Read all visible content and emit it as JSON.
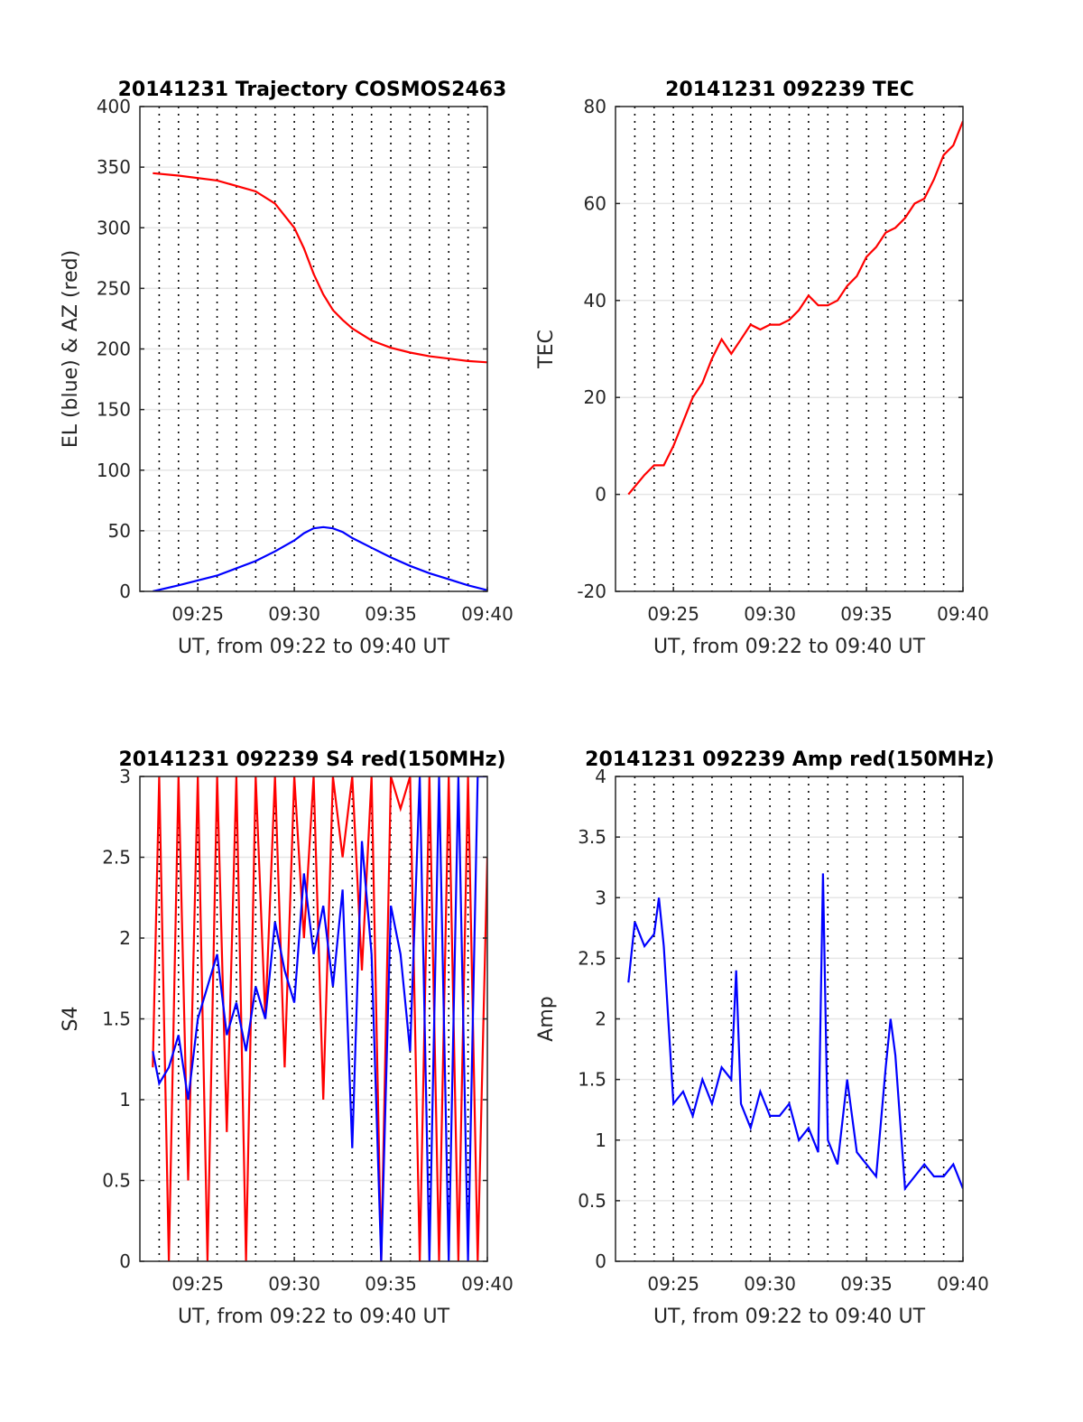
{
  "chart_data": [
    {
      "id": "p1",
      "type": "line",
      "title": "20141231 Trajectory COSMOS2463",
      "xlabel": "UT, from 09:22 to 09:40 UT",
      "ylabel": "EL (blue) & AZ (red)",
      "xlim": [
        "09:22",
        "09:40"
      ],
      "ylim": [
        0,
        400
      ],
      "xticks": [
        "09:25",
        "09:30",
        "09:35",
        "09:40"
      ],
      "yticks": [
        0,
        50,
        100,
        150,
        200,
        250,
        300,
        350,
        400
      ],
      "ytick_labels": [
        "0",
        "50",
        "100",
        "150",
        "200",
        "250",
        "300",
        "350",
        "400"
      ],
      "grid": "vertical dotted lines every minute, horizontal light-gray lines at each y tick",
      "colors": {
        "EL": "#0000ff",
        "AZ": "#ff0000"
      },
      "series": [
        {
          "key": "AZ",
          "color": "#ff0000",
          "x": [
            "09:22:40",
            "09:24:00",
            "09:26:00",
            "09:28:00",
            "09:29:00",
            "09:30:00",
            "09:30:30",
            "09:31:00",
            "09:31:30",
            "09:32:00",
            "09:32:30",
            "09:33:00",
            "09:33:30",
            "09:34:00",
            "09:35:00",
            "09:36:00",
            "09:37:00",
            "09:38:00",
            "09:39:00",
            "09:40:00"
          ],
          "y": [
            345,
            343,
            339,
            330,
            320,
            300,
            283,
            262,
            245,
            232,
            224,
            217,
            212,
            207,
            201,
            197,
            194,
            192,
            190,
            189
          ]
        },
        {
          "key": "EL",
          "color": "#0000ff",
          "x": [
            "09:22:40",
            "09:24:00",
            "09:26:00",
            "09:28:00",
            "09:29:00",
            "09:30:00",
            "09:30:30",
            "09:31:00",
            "09:31:30",
            "09:32:00",
            "09:32:30",
            "09:33:00",
            "09:34:00",
            "09:35:00",
            "09:36:00",
            "09:37:00",
            "09:38:00",
            "09:39:00",
            "09:40:00"
          ],
          "y": [
            0,
            5,
            13,
            25,
            33,
            42,
            48,
            52,
            53,
            52,
            49,
            44,
            36,
            28,
            21,
            15,
            10,
            5,
            1
          ]
        }
      ]
    },
    {
      "id": "p2",
      "type": "line",
      "title": "20141231 092239 TEC",
      "xlabel": "UT, from 09:22 to 09:40 UT",
      "ylabel": "TEC",
      "xlim": [
        "09:22",
        "09:40"
      ],
      "ylim": [
        -20,
        80
      ],
      "xticks": [
        "09:25",
        "09:30",
        "09:35",
        "09:40"
      ],
      "yticks": [
        -20,
        0,
        20,
        40,
        60,
        80
      ],
      "ytick_labels": [
        "-20",
        "0",
        "20",
        "40",
        "60",
        "80"
      ],
      "grid": "vertical dotted lines every minute, horizontal light-gray lines at each y tick",
      "colors": {
        "TEC": "#ff0000"
      },
      "series": [
        {
          "key": "TEC",
          "color": "#ff0000",
          "x": [
            "09:22:40",
            "09:23:30",
            "09:24:00",
            "09:24:30",
            "09:25:00",
            "09:25:30",
            "09:26:00",
            "09:26:30",
            "09:27:00",
            "09:27:30",
            "09:28:00",
            "09:28:30",
            "09:29:00",
            "09:29:30",
            "09:30:00",
            "09:30:30",
            "09:31:00",
            "09:31:30",
            "09:32:00",
            "09:32:30",
            "09:33:00",
            "09:33:30",
            "09:34:00",
            "09:34:30",
            "09:35:00",
            "09:35:30",
            "09:36:00",
            "09:36:30",
            "09:37:00",
            "09:37:30",
            "09:38:00",
            "09:38:30",
            "09:39:00",
            "09:39:30",
            "09:40:00"
          ],
          "y": [
            0,
            4,
            6,
            6,
            10,
            15,
            20,
            23,
            28,
            32,
            29,
            32,
            35,
            34,
            35,
            35,
            36,
            38,
            41,
            39,
            39,
            40,
            43,
            45,
            49,
            51,
            54,
            55,
            57,
            60,
            61,
            65,
            70,
            72,
            77
          ]
        }
      ]
    },
    {
      "id": "p3",
      "type": "line",
      "title": "20141231 092239 S4 red(150MHz)",
      "xlabel": "UT, from 09:22 to 09:40 UT",
      "ylabel": "S4",
      "xlim": [
        "09:22",
        "09:40"
      ],
      "ylim": [
        0,
        3
      ],
      "xticks": [
        "09:25",
        "09:30",
        "09:35",
        "09:40"
      ],
      "yticks": [
        0,
        0.5,
        1,
        1.5,
        2,
        2.5,
        3
      ],
      "ytick_labels": [
        "0",
        "0.5",
        "1",
        "1.5",
        "2",
        "2.5",
        "3"
      ],
      "grid": "vertical dotted lines every minute, horizontal light-gray lines at each y tick",
      "colors": {
        "S4_red": "#ff0000",
        "S4_blue": "#0000ff"
      },
      "series": [
        {
          "key": "S4_red",
          "color": "#ff0000",
          "x": [
            "09:22:40",
            "09:23:00",
            "09:23:30",
            "09:24:00",
            "09:24:30",
            "09:25:00",
            "09:25:30",
            "09:26:00",
            "09:26:30",
            "09:27:00",
            "09:27:30",
            "09:28:00",
            "09:28:30",
            "09:29:00",
            "09:29:30",
            "09:30:00",
            "09:30:30",
            "09:31:00",
            "09:31:30",
            "09:32:00",
            "09:32:30",
            "09:33:00",
            "09:33:30",
            "09:34:00",
            "09:34:30",
            "09:35:00",
            "09:35:30",
            "09:36:00",
            "09:36:30",
            "09:37:00",
            "09:37:30",
            "09:38:00",
            "09:38:30",
            "09:39:00",
            "09:39:30",
            "09:40:00"
          ],
          "y": [
            1.2,
            3.0,
            0.0,
            3.0,
            0.5,
            3.0,
            0.0,
            3.0,
            0.8,
            3.0,
            0.0,
            3.0,
            1.5,
            3.0,
            1.2,
            3.0,
            2.0,
            3.0,
            1.0,
            3.0,
            2.5,
            3.0,
            1.8,
            3.0,
            0.0,
            3.0,
            2.8,
            3.0,
            0.0,
            3.0,
            0.0,
            3.0,
            0.0,
            3.0,
            0.0,
            2.5
          ]
        },
        {
          "key": "S4_blue",
          "color": "#0000ff",
          "x": [
            "09:22:40",
            "09:23:00",
            "09:23:30",
            "09:24:00",
            "09:24:30",
            "09:25:00",
            "09:25:30",
            "09:26:00",
            "09:26:30",
            "09:27:00",
            "09:27:30",
            "09:28:00",
            "09:28:30",
            "09:29:00",
            "09:29:30",
            "09:30:00",
            "09:30:30",
            "09:31:00",
            "09:31:30",
            "09:32:00",
            "09:32:30",
            "09:33:00",
            "09:33:30",
            "09:34:00",
            "09:34:30",
            "09:35:00",
            "09:35:30",
            "09:36:00",
            "09:36:30",
            "09:37:00",
            "09:37:30",
            "09:38:00",
            "09:38:30",
            "09:39:00",
            "09:39:30",
            "09:40:00"
          ],
          "y": [
            1.3,
            1.1,
            1.2,
            1.4,
            1.0,
            1.5,
            1.7,
            1.9,
            1.4,
            1.6,
            1.3,
            1.7,
            1.5,
            2.1,
            1.8,
            1.6,
            2.4,
            1.9,
            2.2,
            1.7,
            2.3,
            0.7,
            2.6,
            1.9,
            0.0,
            2.2,
            1.9,
            1.3,
            3.0,
            0.0,
            3.0,
            0.0,
            3.0,
            0.0,
            3.0,
            3.0
          ]
        }
      ]
    },
    {
      "id": "p4",
      "type": "line",
      "title": "20141231 092239 Amp red(150MHz)",
      "xlabel": "UT, from 09:22 to 09:40 UT",
      "ylabel": "Amp",
      "xlim": [
        "09:22",
        "09:40"
      ],
      "ylim": [
        0,
        4
      ],
      "xticks": [
        "09:25",
        "09:30",
        "09:35",
        "09:40"
      ],
      "yticks": [
        0,
        0.5,
        1,
        1.5,
        2,
        2.5,
        3,
        3.5,
        4
      ],
      "ytick_labels": [
        "0",
        "0.5",
        "1",
        "1.5",
        "2",
        "2.5",
        "3",
        "3.5",
        "4"
      ],
      "grid": "vertical dotted lines every minute, horizontal light-gray lines at each y tick",
      "colors": {
        "Amp": "#0000ff"
      },
      "series": [
        {
          "key": "Amp",
          "color": "#0000ff",
          "x": [
            "09:22:40",
            "09:23:00",
            "09:23:30",
            "09:24:00",
            "09:24:15",
            "09:24:30",
            "09:25:00",
            "09:25:30",
            "09:26:00",
            "09:26:30",
            "09:27:00",
            "09:27:30",
            "09:28:00",
            "09:28:15",
            "09:28:30",
            "09:29:00",
            "09:29:30",
            "09:30:00",
            "09:30:30",
            "09:31:00",
            "09:31:30",
            "09:32:00",
            "09:32:30",
            "09:32:45",
            "09:33:00",
            "09:33:30",
            "09:34:00",
            "09:34:30",
            "09:35:00",
            "09:35:30",
            "09:36:00",
            "09:36:15",
            "09:36:30",
            "09:37:00",
            "09:37:30",
            "09:38:00",
            "09:38:30",
            "09:39:00",
            "09:39:30",
            "09:40:00"
          ],
          "y": [
            2.3,
            2.8,
            2.6,
            2.7,
            3.0,
            2.6,
            1.3,
            1.4,
            1.2,
            1.5,
            1.3,
            1.6,
            1.5,
            2.4,
            1.3,
            1.1,
            1.4,
            1.2,
            1.2,
            1.3,
            1.0,
            1.1,
            0.9,
            3.2,
            1.0,
            0.8,
            1.5,
            0.9,
            0.8,
            0.7,
            1.6,
            2.0,
            1.7,
            0.6,
            0.7,
            0.8,
            0.7,
            0.7,
            0.8,
            0.6
          ]
        }
      ]
    }
  ]
}
